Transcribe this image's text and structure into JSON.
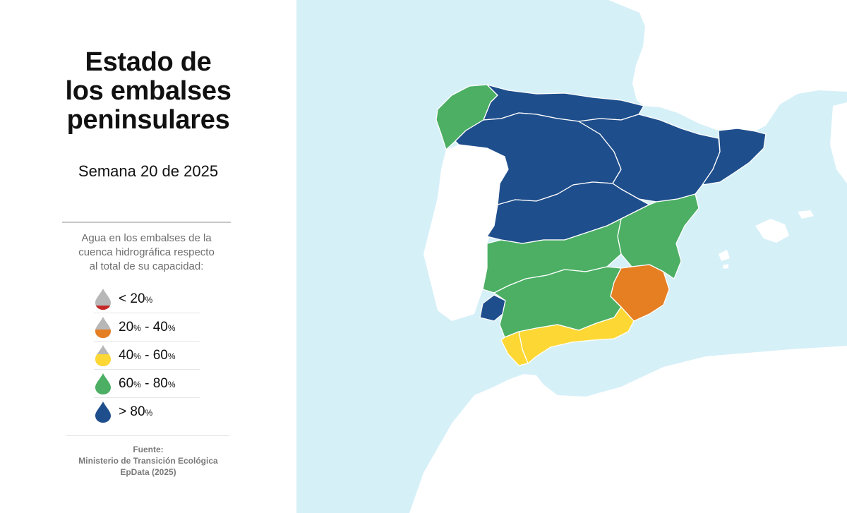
{
  "title": {
    "line1": "Estado de",
    "line2": "los embalses",
    "line3": "peninsulares"
  },
  "subtitle": "Semana 20 de 2025",
  "description": {
    "line1": "Agua en los embalses de la",
    "line2": "cuenca hidrográfica respecto",
    "line3": "al total de su capacidad:"
  },
  "legend": [
    {
      "label_a": "< 20",
      "unit_a": "%",
      "label_b": "",
      "unit_b": "",
      "color": "#c62828",
      "icon": "drop-low-icon",
      "fill_fraction": 0.2
    },
    {
      "label_a": "20",
      "unit_a": "%",
      "label_b": " - 40",
      "unit_b": "%",
      "color": "#e67e22",
      "icon": "drop-mid-low-icon",
      "fill_fraction": 0.4
    },
    {
      "label_a": "40",
      "unit_a": "%",
      "label_b": " - 60",
      "unit_b": "%",
      "color": "#fdd835",
      "icon": "drop-mid-icon",
      "fill_fraction": 0.6
    },
    {
      "label_a": "60",
      "unit_a": "%",
      "label_b": " - 80",
      "unit_b": "%",
      "color": "#4caf64",
      "icon": "drop-high-icon",
      "fill_fraction": 1.0
    },
    {
      "label_a": "> 80",
      "unit_a": "%",
      "label_b": "",
      "unit_b": "",
      "color": "#1f4e8c",
      "icon": "drop-full-icon",
      "fill_fraction": 1.0
    }
  ],
  "source": {
    "label": "Fuente:",
    "line1": "Ministerio de Transición Ecológica",
    "line2": "EpData (2025)"
  },
  "colors": {
    "sea": "#d6f0f8",
    "land": "#ffffff",
    "drop_empty": "#b7b7b7",
    "lt20": "#c62828",
    "20_40": "#e67e22",
    "40_60": "#fdd835",
    "60_80": "#4caf64",
    "gt80": "#1f4e8c"
  },
  "basins": [
    {
      "name": "north-coast",
      "category": "gt80"
    },
    {
      "name": "galicia-coast",
      "category": "60_80"
    },
    {
      "name": "duero",
      "category": "gt80"
    },
    {
      "name": "ebro",
      "category": "gt80"
    },
    {
      "name": "catalonia",
      "category": "gt80"
    },
    {
      "name": "tajo",
      "category": "gt80"
    },
    {
      "name": "guadiana",
      "category": "60_80"
    },
    {
      "name": "jucar",
      "category": "60_80"
    },
    {
      "name": "guadalquivir",
      "category": "60_80"
    },
    {
      "name": "tinto-odiel-piedras",
      "category": "gt80"
    },
    {
      "name": "segura",
      "category": "20_40"
    },
    {
      "name": "mediterranean-andalusia",
      "category": "40_60"
    },
    {
      "name": "guadalete-barbate",
      "category": "40_60"
    }
  ]
}
